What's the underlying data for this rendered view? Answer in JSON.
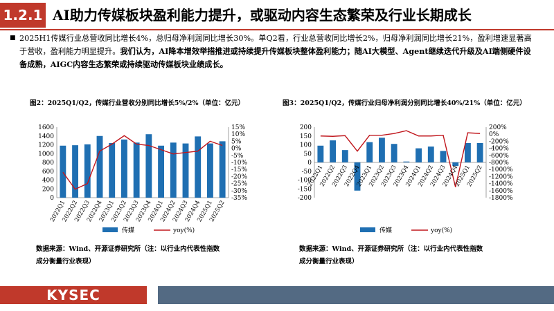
{
  "header": {
    "section_number": "1.2.1",
    "title": "AI助力传媒板块盈利能力提升，或驱动内容生态繁荣及行业长期成长"
  },
  "body": {
    "bullet": "■",
    "para_normal_1": "2025H1传媒行业总营收同比增长4%，总归母净利润同比增长30%。单Q2看，行业总营收同比增长2%，归母净利润同比增长21%，盈利增速显著高于营收，盈利能力明显提升。",
    "para_bold": "我们认为，AI降本增效举措推进或持续提升传媒板块整体盈利能力；随AI大模型、Agent继续迭代升级及AI端侧硬件设备成熟，AIGC内容生态繁荣或持续驱动传媒板块业绩成长。"
  },
  "charts": {
    "left_title": "图2：2025Q1/Q2，传媒行业营收分别同比增长5%/2%（单位：亿元）",
    "right_title": "图3：2025Q1/Q2，传媒行业归母净利润分别同比增长40%/21%（单位：亿元）",
    "source_line1": "数据来源：Wind、开源证券研究所（注：以行业内代表性指数",
    "source_line2": "成分衡量行业表现）"
  },
  "chart_data": [
    {
      "type": "bar",
      "title": "图2：2025Q1/Q2，传媒行业营收分别同比增长5%/2%（单位：亿元）",
      "categories": [
        "2022Q1",
        "2022Q2",
        "2022Q3",
        "2022Q4",
        "2023Q1",
        "2023Q2",
        "2023Q3",
        "2023Q4",
        "2024Q1",
        "2024Q2",
        "2024Q3",
        "2024Q4",
        "2025Q1",
        "2025Q2"
      ],
      "series": [
        {
          "name": "传媒",
          "type": "bar",
          "axis": "left",
          "color": "#1f6fb2",
          "values": [
            1180,
            1190,
            1210,
            1400,
            1240,
            1320,
            1250,
            1440,
            1180,
            1250,
            1230,
            1390,
            1230,
            1280
          ]
        },
        {
          "name": "yoy(%)",
          "type": "line",
          "axis": "right",
          "color": "#c0161c",
          "values": [
            -17,
            -29,
            -25,
            -2,
            3,
            9,
            3,
            2,
            -1,
            -4,
            -3,
            -2,
            5,
            2
          ]
        }
      ],
      "ylim_left": [
        0,
        1600
      ],
      "ylim_right": [
        -35,
        15
      ],
      "yticks_left": [
        "0",
        "200",
        "400",
        "600",
        "800",
        "1000",
        "1200",
        "1400",
        "1600"
      ],
      "yticks_right": [
        "-35%",
        "-30%",
        "-25%",
        "-20%",
        "-15%",
        "-10%",
        "-5%",
        "0%",
        "5%",
        "10%",
        "15%"
      ],
      "legend": [
        "传媒",
        "yoy(%)"
      ]
    },
    {
      "type": "bar",
      "title": "图3：2025Q1/Q2，传媒行业归母净利润分别同比增长40%/21%（单位：亿元）",
      "categories": [
        "2022Q1",
        "2022Q2",
        "2022Q3",
        "2022Q4",
        "2023Q1",
        "2023Q2",
        "2023Q3",
        "2023Q4",
        "2024Q1",
        "2024Q2",
        "2024Q3",
        "2024Q4",
        "2025Q1",
        "2025Q2"
      ],
      "series": [
        {
          "name": "传媒",
          "type": "bar",
          "axis": "left",
          "color": "#1f6fb2",
          "values": [
            95,
            125,
            70,
            -160,
            115,
            140,
            105,
            5,
            80,
            90,
            65,
            -20,
            110,
            110
          ]
        },
        {
          "name": "yoy(%)",
          "type": "line",
          "axis": "right",
          "color": "#c0161c",
          "values": [
            -50,
            -60,
            -40,
            -480,
            -30,
            -30,
            20,
            100,
            -50,
            -50,
            -30,
            -1500,
            40,
            21
          ]
        }
      ],
      "ylim_left": [
        -200,
        200
      ],
      "ylim_right": [
        -1800,
        200
      ],
      "yticks_left": [
        "-200",
        "-150",
        "-100",
        "-50",
        "0",
        "50",
        "100",
        "150",
        "200"
      ],
      "yticks_right": [
        "-1800%",
        "-1600%",
        "-1400%",
        "-1200%",
        "-1000%",
        "-800%",
        "-600%",
        "-400%",
        "-200%",
        "0%",
        "200%"
      ],
      "legend": [
        "传媒",
        "yoy(%)"
      ]
    }
  ],
  "footer": {
    "logo": "KYSEC"
  },
  "colors": {
    "brand_red": "#c0392b",
    "bar_blue": "#1f6fb2",
    "line_red": "#c0161c",
    "footer_slate": "#536a83"
  }
}
